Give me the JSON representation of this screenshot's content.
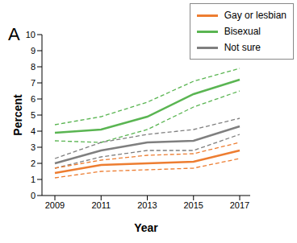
{
  "chart_data": {
    "type": "line",
    "title": "A",
    "x_label": "Year",
    "y_label": "Percent",
    "categories": [
      "2009",
      "2011",
      "2013",
      "2015",
      "2017"
    ],
    "ylim": [
      0,
      10
    ],
    "yticks": [
      0,
      1,
      2,
      3,
      4,
      5,
      6,
      7,
      8,
      9,
      10
    ],
    "grid": false,
    "legend": "top-right",
    "series": [
      {
        "name": "Gay or lesbian",
        "color": "#ed7d31",
        "line_style": "solid",
        "values": [
          1.4,
          1.9,
          2.0,
          2.1,
          2.8
        ],
        "lower": [
          1.1,
          1.5,
          1.6,
          1.7,
          2.3
        ],
        "upper": [
          1.7,
          2.2,
          2.5,
          2.6,
          3.3
        ]
      },
      {
        "name": "Bisexual",
        "color": "#5ab552",
        "line_style": "solid",
        "values": [
          3.9,
          4.1,
          4.9,
          6.3,
          7.2
        ],
        "lower": [
          3.4,
          3.3,
          4.1,
          5.5,
          6.5
        ],
        "upper": [
          4.4,
          4.9,
          5.8,
          7.1,
          7.9
        ]
      },
      {
        "name": "Not sure",
        "color": "#7f7f7f",
        "line_style": "solid",
        "values": [
          2.0,
          2.8,
          3.3,
          3.4,
          4.3
        ],
        "lower": [
          1.7,
          2.4,
          2.8,
          2.8,
          3.8
        ],
        "upper": [
          2.3,
          3.3,
          3.8,
          4.1,
          4.8
        ]
      }
    ]
  }
}
